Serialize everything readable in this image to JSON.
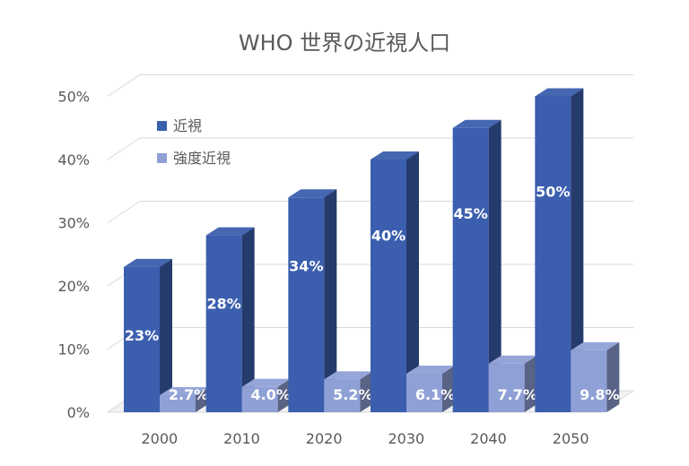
{
  "chart_data": {
    "type": "bar",
    "title": "WHO 世界の近視人口",
    "categories": [
      "2000",
      "2010",
      "2020",
      "2030",
      "2040",
      "2050"
    ],
    "series": [
      {
        "name": "近視",
        "values": [
          23,
          28,
          34,
          40,
          45,
          50
        ],
        "labels": [
          "23%",
          "28%",
          "34%",
          "40%",
          "45%",
          "50%"
        ],
        "color": "#3b5fae"
      },
      {
        "name": "強度近視",
        "values": [
          2.7,
          4.0,
          5.2,
          6.1,
          7.7,
          9.8
        ],
        "labels": [
          "2.7%",
          "4.0%",
          "5.2%",
          "6.1%",
          "7.7%",
          "9.8%"
        ],
        "color": "#8fa0d6"
      }
    ],
    "y_ticks": [
      "0%",
      "10%",
      "20%",
      "30%",
      "40%",
      "50%"
    ],
    "ylim": [
      0,
      50
    ],
    "grid": true,
    "legend_position": "top-left",
    "style": "3d-clustered-column"
  }
}
